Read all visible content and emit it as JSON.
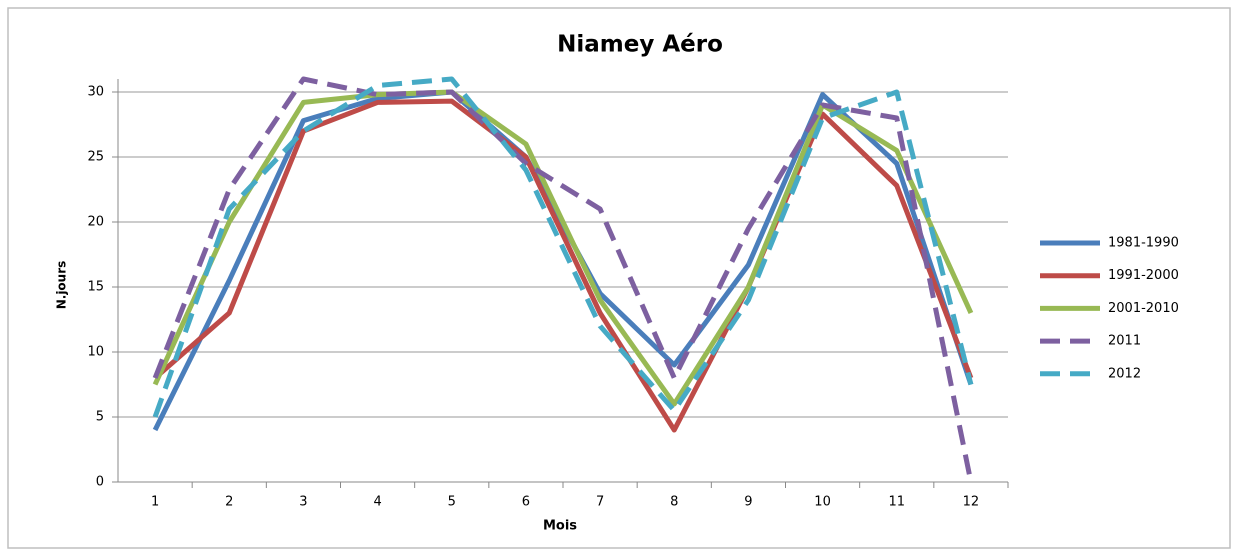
{
  "chart_data": {
    "type": "line",
    "title": "Niamey Aéro",
    "x_label": "Mois",
    "y_label": "N.jours",
    "categories": [
      "1",
      "2",
      "3",
      "4",
      "5",
      "6",
      "7",
      "8",
      "9",
      "10",
      "11",
      "12"
    ],
    "series": [
      {
        "name": "1981-1990",
        "color": "#4a7ebb",
        "dashed": false,
        "values": [
          4,
          15.5,
          27.8,
          29.5,
          30,
          25,
          14.5,
          9,
          16.7,
          29.8,
          24.5,
          7.5
        ]
      },
      {
        "name": "1991-2000",
        "color": "#be4b48",
        "dashed": false,
        "values": [
          8,
          13,
          27,
          29.2,
          29.3,
          25,
          13,
          4,
          15,
          28.3,
          22.8,
          8
        ]
      },
      {
        "name": "2001-2010",
        "color": "#98b954",
        "dashed": false,
        "values": [
          7.5,
          20,
          29.2,
          29.8,
          30,
          26,
          14,
          6,
          15,
          29,
          25.5,
          13
        ]
      },
      {
        "name": "2011",
        "color": "#7d60a0",
        "dashed": true,
        "values": [
          8,
          22.5,
          31,
          29.8,
          30,
          24.5,
          21,
          8,
          19.5,
          29,
          28,
          0
        ]
      },
      {
        "name": "2012",
        "color": "#46aac5",
        "dashed": true,
        "values": [
          5,
          21,
          27,
          30.5,
          31,
          24,
          12,
          5.5,
          14,
          28,
          30,
          7.5
        ]
      }
    ],
    "ylim": [
      0,
      31
    ],
    "yticks": [
      0,
      5,
      10,
      15,
      20,
      25,
      30
    ],
    "grid": true,
    "legend": "right"
  }
}
